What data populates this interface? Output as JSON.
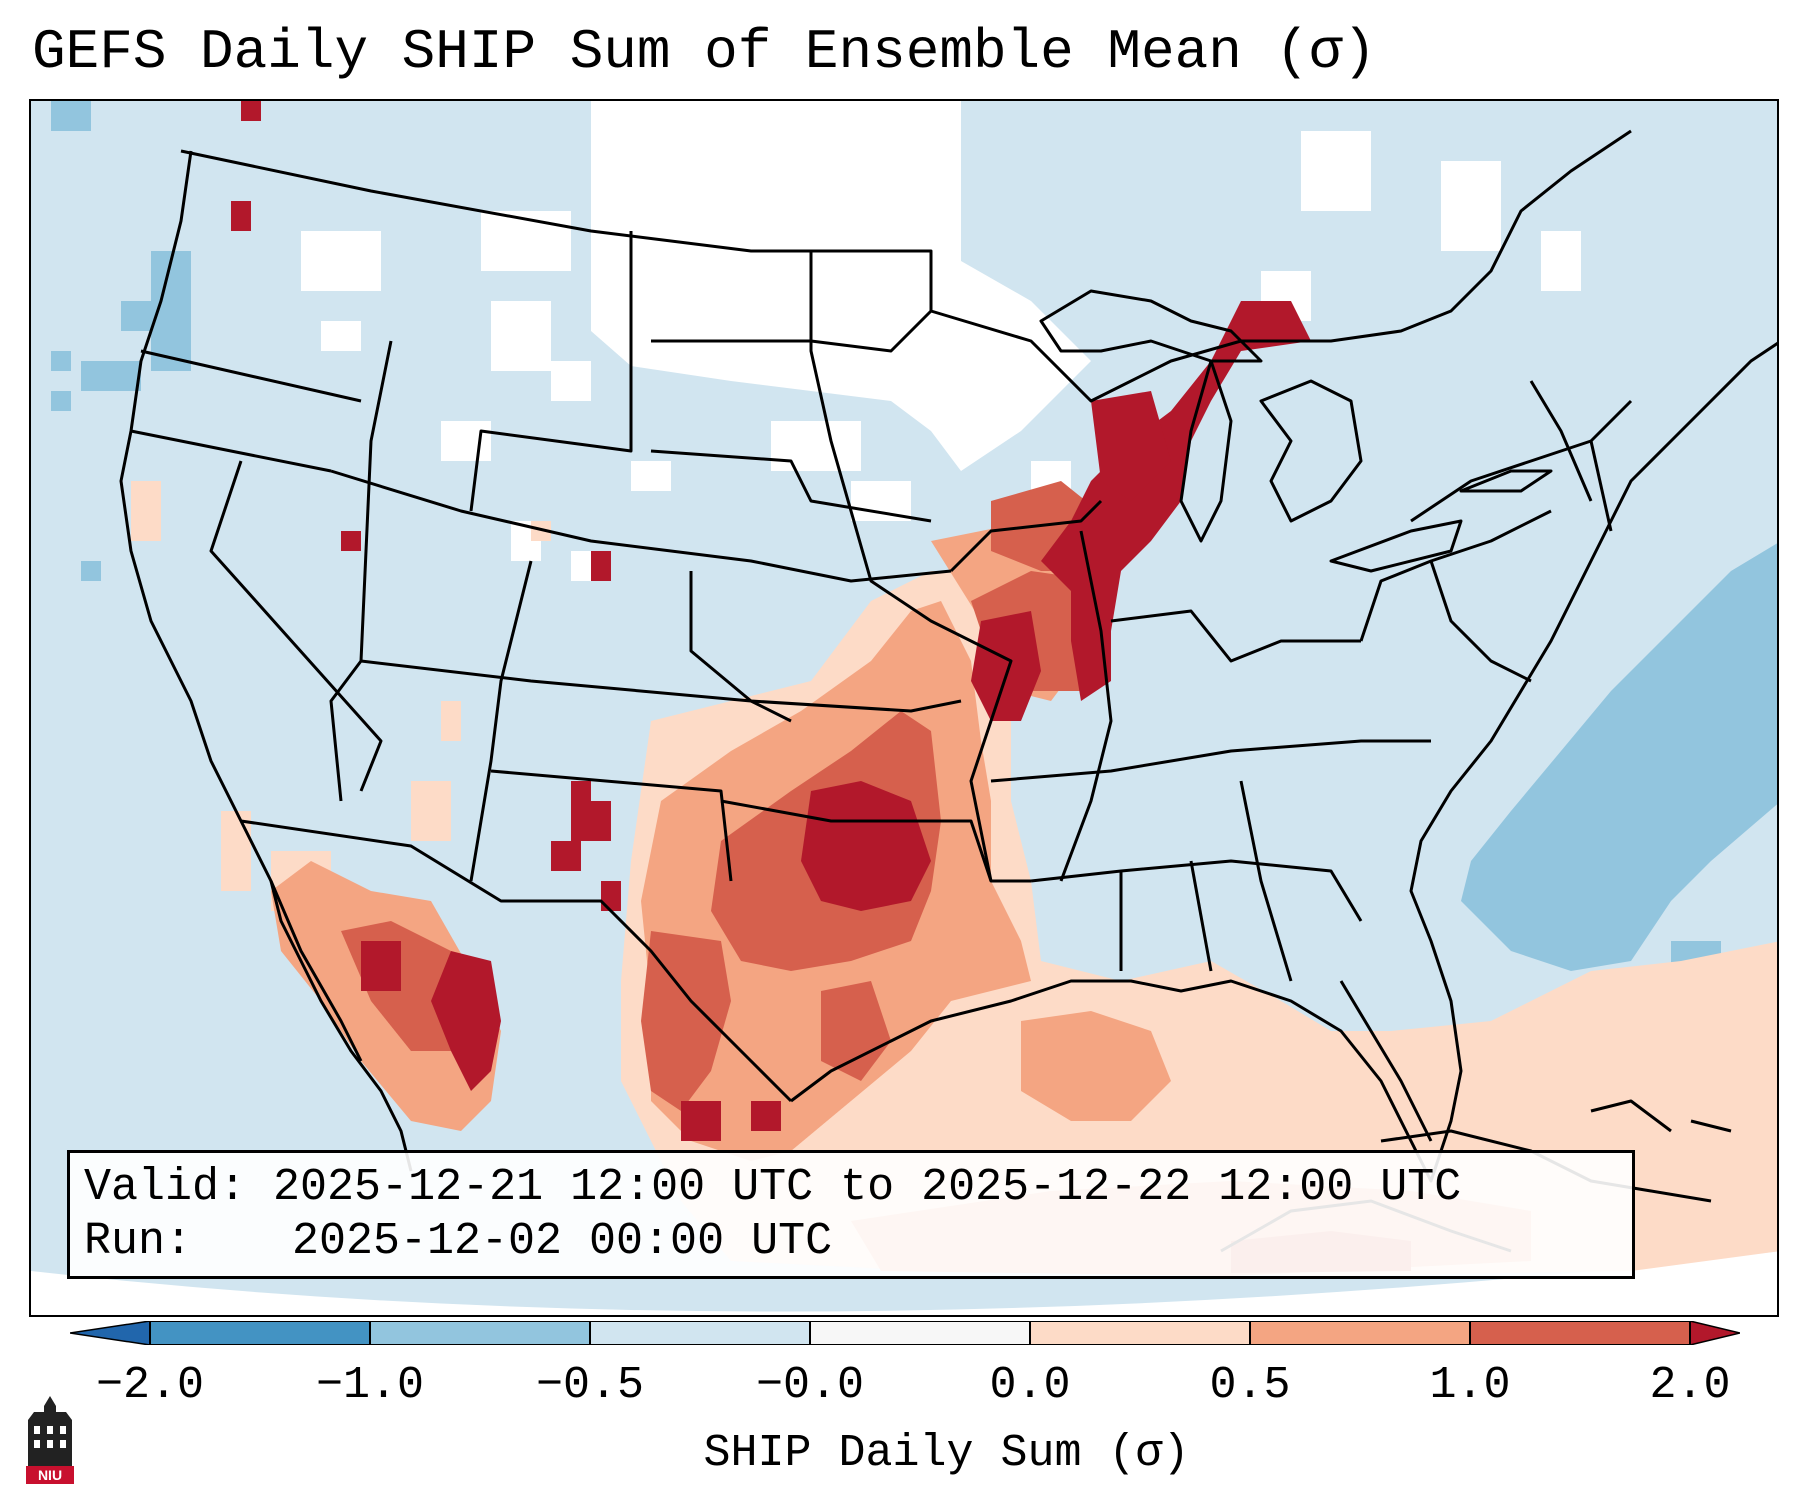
{
  "title": "GEFS Daily SHIP Sum of Ensemble Mean (σ)",
  "info": {
    "valid_label": "Valid:",
    "valid_value": "2025-12-21 12:00 UTC to 2025-12-22 12:00 UTC",
    "run_label": "Run:",
    "run_value": "2025-12-02 00:00 UTC"
  },
  "colorbar": {
    "label": "SHIP Daily Sum (σ)",
    "ticks": [
      "−2.0",
      "−1.0",
      "−0.5",
      "−0.0",
      "0.0",
      "0.5",
      "1.0",
      "2.0"
    ],
    "colors": [
      "#4393c3",
      "#92c5de",
      "#d1e5f0",
      "#f7f7f7",
      "#fddbc7",
      "#f4a582",
      "#d6604d",
      "#b2182b"
    ],
    "under_color": "#2166ac",
    "over_color": "#b2182b"
  },
  "map": {
    "background_color": "#d1e5f0",
    "neutral_color": "#ffffff",
    "ocean_negative_color": "#92c5de"
  },
  "logo": {
    "text": "NIU",
    "icon": "university-tower-icon"
  }
}
